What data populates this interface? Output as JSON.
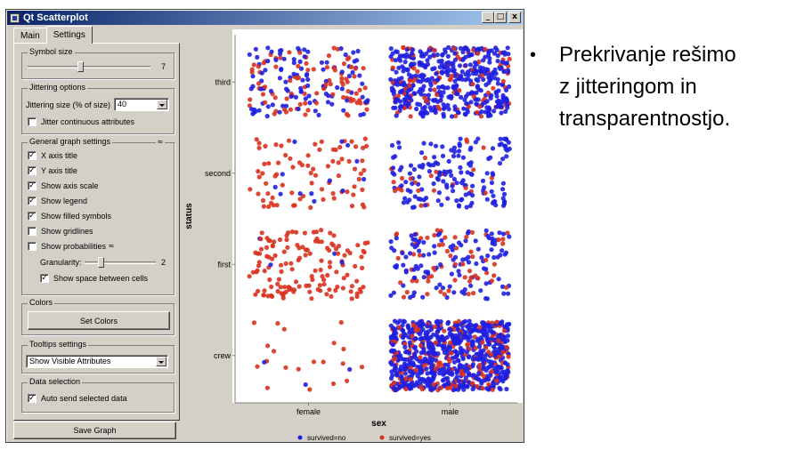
{
  "window": {
    "title": "Qt Scatterplot",
    "buttons": {
      "minimize": "_",
      "maximize": "□",
      "close": "x"
    }
  },
  "tabs": [
    {
      "label": "Main",
      "active": false
    },
    {
      "label": "Settings",
      "active": true
    }
  ],
  "settings": {
    "symbol_size": {
      "title": "Symbol size",
      "value": "7",
      "fraction": 0.43
    },
    "jittering": {
      "title": "Jittering options",
      "size_label": "Jittering size (% of size)",
      "size_value": "40",
      "continuous_label": "Jitter continuous attributes",
      "continuous_checked": false
    },
    "general": {
      "title": "General graph settings",
      "items": [
        {
          "label": "X axis title",
          "checked": true
        },
        {
          "label": "Y axis title",
          "checked": true
        },
        {
          "label": "Show axis scale",
          "checked": true
        },
        {
          "label": "Show legend",
          "checked": true
        },
        {
          "label": "Show filled symbols",
          "checked": true
        },
        {
          "label": "Show gridlines",
          "checked": false
        },
        {
          "label": "Show probabilities",
          "checked": false
        }
      ],
      "granularity_label": "Granularity:",
      "granularity_value": "2",
      "granularity_fraction": 0.2,
      "space_label": "Show space between cells",
      "space_checked": true
    },
    "colors": {
      "title": "Colors",
      "button": "Set Colors"
    },
    "tooltips": {
      "title": "Tooltips settings",
      "value": "Show Visible Attributes"
    },
    "data_selection": {
      "title": "Data selection",
      "auto_send_label": "Auto send selected data",
      "auto_send_checked": true
    }
  },
  "save_button": "Save Graph",
  "chart_data": {
    "type": "scatter",
    "xlabel": "sex",
    "ylabel": "status",
    "x_categories": [
      "female",
      "male"
    ],
    "y_categories": [
      "crew",
      "first",
      "second",
      "third"
    ],
    "legend": [
      {
        "label": "survived=no",
        "color": "#1f1fe0"
      },
      {
        "label": "survived=yes",
        "color": "#d9321f"
      }
    ],
    "legend_position": "bottom",
    "gridlines": false,
    "jitter_percent": 40,
    "cells": [
      {
        "sex": "female",
        "status": "third",
        "no": 106,
        "yes": 90
      },
      {
        "sex": "male",
        "status": "third",
        "no": 422,
        "yes": 88
      },
      {
        "sex": "female",
        "status": "second",
        "no": 13,
        "yes": 80
      },
      {
        "sex": "male",
        "status": "second",
        "no": 154,
        "yes": 25
      },
      {
        "sex": "female",
        "status": "first",
        "no": 4,
        "yes": 141
      },
      {
        "sex": "male",
        "status": "first",
        "no": 118,
        "yes": 62
      },
      {
        "sex": "female",
        "status": "crew",
        "no": 3,
        "yes": 20
      },
      {
        "sex": "male",
        "status": "crew",
        "no": 670,
        "yes": 192
      }
    ]
  },
  "bullet": {
    "symbol": "•",
    "text": "Prekrivanje rešimo\nz jitteringom in\ntransparentnostjo."
  }
}
